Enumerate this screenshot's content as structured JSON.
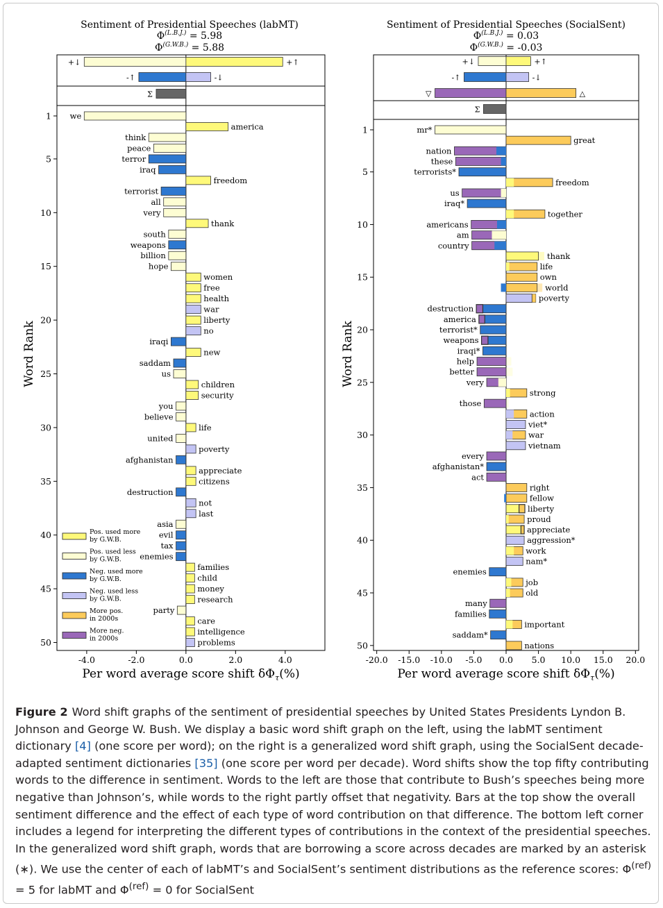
{
  "caption": {
    "label": "Figure 2",
    "part1": "Word shift graphs of the sentiment of presidential speeches by United States Presidents Lyndon B. Johnson and George W. Bush. We display a basic word shift graph on the left, using the labMT sentiment dictionary ",
    "ref1": "[4]",
    "part2": " (one score per word); on the right is a generalized word shift graph, using the SocialSent decade-adapted sentiment dictionaries ",
    "ref2": "[35]",
    "part3": " (one score per word per decade). Word shifts show the top fifty contributing words to the difference in sentiment. Words to the left are those that contribute to Bush’s speeches being more negative than Johnson’s, while words to the right partly offset that negativity. Bars at the top show the overall sentiment difference and the effect of each type of word contribution on that difference. The bottom left corner includes a legend for interpreting the different types of contributions in the context of the presidential speeches. In the generalized word shift graph, words that are borrowing a score across decades are marked by an asterisk (∗). We use the center of each of labMT’s and SocialSent’s sentiment distributions as the reference scores: Φ",
    "sup1": "(ref)",
    "part4": " = 5 for labMT and Φ",
    "sup2": "(ref)",
    "part5": " = 0 for SocialSent"
  },
  "colors": {
    "pos_more": "#fef97a",
    "pos_less": "#fdfdd3",
    "neg_more": "#2e78d0",
    "neg_less": "#c3c4f4",
    "more_pos_2000s": "#fccb5b",
    "more_neg_2000s": "#9a68b8",
    "total": "#666666",
    "edge": "#333333"
  },
  "chart_data": [
    {
      "type": "bar",
      "orientation": "horizontal",
      "title": "Sentiment of Presidential Speeches (labMT)",
      "phi_lbj_label": "Φ(L.B.J.) = 5.98",
      "phi_gwb_label": "Φ(G.W.B.) = 5.88",
      "xlabel": "Per word average score shift δΦτ(%)",
      "ylabel": "Word Rank",
      "xlim": [
        -5.2,
        5.6
      ],
      "xticks": [
        "-4.0",
        "-2.0",
        "0.0",
        "2.0",
        "4.0"
      ],
      "yticks": [
        "1",
        "5",
        "10",
        "15",
        "20",
        "25",
        "30",
        "35",
        "40",
        "45",
        "50"
      ],
      "summary_bars": [
        {
          "label": "+↓",
          "value": -4.1,
          "type": "pos_less"
        },
        {
          "label": "+↑",
          "value": 3.9,
          "type": "pos_more"
        },
        {
          "label": "-↑",
          "value": -1.9,
          "type": "neg_more"
        },
        {
          "label": "-↓",
          "value": 1.0,
          "type": "neg_less"
        },
        {
          "label": "Σ",
          "value": -1.2,
          "type": "total"
        }
      ],
      "words": [
        {
          "rank": 1,
          "word": "we",
          "value": -4.1,
          "type": "pos_less"
        },
        {
          "rank": 2,
          "word": "america",
          "value": 1.7,
          "type": "pos_more"
        },
        {
          "rank": 3,
          "word": "think",
          "value": -1.5,
          "type": "pos_less"
        },
        {
          "rank": 4,
          "word": "peace",
          "value": -1.3,
          "type": "pos_less"
        },
        {
          "rank": 5,
          "word": "terror",
          "value": -1.5,
          "type": "neg_more"
        },
        {
          "rank": 6,
          "word": "iraq",
          "value": -1.1,
          "type": "neg_more"
        },
        {
          "rank": 7,
          "word": "freedom",
          "value": 1.0,
          "type": "pos_more"
        },
        {
          "rank": 8,
          "word": "terrorist",
          "value": -1.0,
          "type": "neg_more"
        },
        {
          "rank": 9,
          "word": "all",
          "value": -0.9,
          "type": "pos_less"
        },
        {
          "rank": 10,
          "word": "very",
          "value": -0.9,
          "type": "pos_less"
        },
        {
          "rank": 11,
          "word": "thank",
          "value": 0.9,
          "type": "pos_more"
        },
        {
          "rank": 12,
          "word": "south",
          "value": -0.7,
          "type": "pos_less"
        },
        {
          "rank": 13,
          "word": "weapons",
          "value": -0.7,
          "type": "neg_more"
        },
        {
          "rank": 14,
          "word": "billion",
          "value": -0.7,
          "type": "pos_less"
        },
        {
          "rank": 15,
          "word": "hope",
          "value": -0.6,
          "type": "pos_less"
        },
        {
          "rank": 16,
          "word": "women",
          "value": 0.6,
          "type": "pos_more"
        },
        {
          "rank": 17,
          "word": "free",
          "value": 0.6,
          "type": "pos_more"
        },
        {
          "rank": 18,
          "word": "health",
          "value": 0.6,
          "type": "pos_more"
        },
        {
          "rank": 19,
          "word": "war",
          "value": 0.6,
          "type": "neg_less"
        },
        {
          "rank": 20,
          "word": "liberty",
          "value": 0.6,
          "type": "pos_more"
        },
        {
          "rank": 21,
          "word": "no",
          "value": 0.6,
          "type": "neg_less"
        },
        {
          "rank": 22,
          "word": "iraqi",
          "value": -0.6,
          "type": "neg_more"
        },
        {
          "rank": 23,
          "word": "new",
          "value": 0.6,
          "type": "pos_more"
        },
        {
          "rank": 24,
          "word": "saddam",
          "value": -0.5,
          "type": "neg_more"
        },
        {
          "rank": 25,
          "word": "us",
          "value": -0.5,
          "type": "pos_less"
        },
        {
          "rank": 26,
          "word": "children",
          "value": 0.5,
          "type": "pos_more"
        },
        {
          "rank": 27,
          "word": "security",
          "value": 0.5,
          "type": "pos_more"
        },
        {
          "rank": 28,
          "word": "you",
          "value": -0.4,
          "type": "pos_less"
        },
        {
          "rank": 29,
          "word": "believe",
          "value": -0.4,
          "type": "pos_less"
        },
        {
          "rank": 30,
          "word": "life",
          "value": 0.4,
          "type": "pos_more"
        },
        {
          "rank": 31,
          "word": "united",
          "value": -0.4,
          "type": "pos_less"
        },
        {
          "rank": 32,
          "word": "poverty",
          "value": 0.4,
          "type": "neg_less"
        },
        {
          "rank": 33,
          "word": "afghanistan",
          "value": -0.4,
          "type": "neg_more"
        },
        {
          "rank": 34,
          "word": "appreciate",
          "value": 0.4,
          "type": "pos_more"
        },
        {
          "rank": 35,
          "word": "citizens",
          "value": 0.4,
          "type": "pos_more"
        },
        {
          "rank": 36,
          "word": "destruction",
          "value": -0.4,
          "type": "neg_more"
        },
        {
          "rank": 37,
          "word": "not",
          "value": 0.4,
          "type": "neg_less"
        },
        {
          "rank": 38,
          "word": "last",
          "value": 0.4,
          "type": "neg_less"
        },
        {
          "rank": 39,
          "word": "asia",
          "value": -0.4,
          "type": "pos_less"
        },
        {
          "rank": 40,
          "word": "evil",
          "value": -0.4,
          "type": "neg_more"
        },
        {
          "rank": 41,
          "word": "tax",
          "value": -0.4,
          "type": "neg_more"
        },
        {
          "rank": 42,
          "word": "enemies",
          "value": -0.4,
          "type": "neg_more"
        },
        {
          "rank": 43,
          "word": "families",
          "value": 0.35,
          "type": "pos_more"
        },
        {
          "rank": 44,
          "word": "child",
          "value": 0.35,
          "type": "pos_more"
        },
        {
          "rank": 45,
          "word": "money",
          "value": 0.35,
          "type": "pos_more"
        },
        {
          "rank": 46,
          "word": "research",
          "value": 0.35,
          "type": "pos_more"
        },
        {
          "rank": 47,
          "word": "party",
          "value": -0.35,
          "type": "pos_less"
        },
        {
          "rank": 48,
          "word": "care",
          "value": 0.35,
          "type": "pos_more"
        },
        {
          "rank": 49,
          "word": "intelligence",
          "value": 0.35,
          "type": "pos_more"
        },
        {
          "rank": 50,
          "word": "problems",
          "value": 0.35,
          "type": "neg_less"
        }
      ],
      "legend": {
        "placement": "bottom-left",
        "entries": [
          {
            "type": "pos_more",
            "line1": "Pos. used more",
            "line2": "by G.W.B."
          },
          {
            "type": "pos_less",
            "line1": "Pos. used less",
            "line2": "by G.W.B."
          },
          {
            "type": "neg_more",
            "line1": "Neg. used more",
            "line2": "by G.W.B."
          },
          {
            "type": "neg_less",
            "line1": "Neg. used less",
            "line2": "by G.W.B."
          },
          {
            "type": "more_pos_2000s",
            "line1": "More pos.",
            "line2": "in 2000s"
          },
          {
            "type": "more_neg_2000s",
            "line1": "More neg.",
            "line2": "in 2000s"
          }
        ]
      }
    },
    {
      "type": "bar",
      "orientation": "horizontal",
      "title": "Sentiment of Presidential Speeches (SocialSent)",
      "phi_lbj_label": "Φ(L.B.J.) = 0.03",
      "phi_gwb_label": "Φ(G.W.B.) = -0.03",
      "xlabel": "Per word average score shift δΦτ(%)",
      "ylabel": "Word Rank",
      "xlim": [
        -20.5,
        20.5
      ],
      "xticks": [
        "-20.0",
        "-15.0",
        "-10.0",
        "-5.0",
        "0.0",
        "5.0",
        "10.0",
        "15.0",
        "20.0"
      ],
      "yticks": [
        "1",
        "5",
        "10",
        "15",
        "20",
        "25",
        "30",
        "35",
        "40",
        "45",
        "50"
      ],
      "summary_bars": [
        {
          "label": "+↓",
          "value": -4.3,
          "type": "pos_less"
        },
        {
          "label": "+↑",
          "value": 3.8,
          "type": "pos_more"
        },
        {
          "label": "-↑",
          "value": -6.5,
          "type": "neg_more"
        },
        {
          "label": "-↓",
          "value": 3.5,
          "type": "neg_less"
        },
        {
          "label": "▽",
          "value": -11.0,
          "type": "more_neg_2000s"
        },
        {
          "label": "△",
          "value": 10.8,
          "type": "more_pos_2000s"
        },
        {
          "label": "Σ",
          "value": -3.5,
          "type": "total"
        }
      ],
      "words": [
        {
          "rank": 1,
          "word": "mr*",
          "value": -11.0,
          "type": "pos_less"
        },
        {
          "rank": 2,
          "word": "great",
          "value": 10.0,
          "type": "more_pos_2000s"
        },
        {
          "rank": 3,
          "word": "nation",
          "value": -8.0,
          "type": "more_neg_2000s",
          "base": -1.5,
          "base_type": "neg_more"
        },
        {
          "rank": 4,
          "word": "these",
          "value": -7.8,
          "type": "more_neg_2000s",
          "base": -0.8,
          "base_type": "neg_more"
        },
        {
          "rank": 5,
          "word": "terrorists*",
          "value": -7.3,
          "type": "neg_more"
        },
        {
          "rank": 6,
          "word": "freedom",
          "value": 7.2,
          "type": "more_pos_2000s",
          "base": 1.2,
          "base_type": "pos_more"
        },
        {
          "rank": 7,
          "word": "us",
          "value": -6.8,
          "type": "more_neg_2000s",
          "base": -0.8,
          "base_type": "pos_less"
        },
        {
          "rank": 8,
          "word": "iraq*",
          "value": -6.0,
          "type": "neg_more"
        },
        {
          "rank": 9,
          "word": "together",
          "value": 6.0,
          "type": "more_pos_2000s",
          "base": 1.2,
          "base_type": "pos_more"
        },
        {
          "rank": 10,
          "word": "americans",
          "value": -5.4,
          "type": "more_neg_2000s",
          "base": -1.4,
          "base_type": "neg_more"
        },
        {
          "rank": 11,
          "word": "am",
          "value": -5.3,
          "type": "more_neg_2000s",
          "base": -2.2,
          "base_type": "pos_less"
        },
        {
          "rank": 12,
          "word": "country",
          "value": -5.3,
          "type": "more_neg_2000s",
          "base": -1.8,
          "base_type": "neg_more"
        },
        {
          "rank": 13,
          "word": "thank",
          "value": 5.0,
          "type": "pos_more",
          "faded": 5.9
        },
        {
          "rank": 14,
          "word": "life",
          "value": 4.8,
          "type": "more_pos_2000s",
          "base": 0.5,
          "base_type": "pos_more"
        },
        {
          "rank": 15,
          "word": "own",
          "value": 4.8,
          "type": "more_pos_2000s"
        },
        {
          "rank": 16,
          "word": "world",
          "value": 4.8,
          "type": "more_pos_2000s",
          "faded": 5.6,
          "base": -0.8,
          "base_type": "neg_more"
        },
        {
          "rank": 17,
          "word": "poverty",
          "value": 4.0,
          "type": "neg_less",
          "base2": 4.6,
          "base2_type": "more_pos_2000s"
        },
        {
          "rank": 18,
          "word": "destruction",
          "value": -4.6,
          "type": "neg_more",
          "inner": -3.6,
          "inner_type": "more_neg_2000s"
        },
        {
          "rank": 19,
          "word": "america",
          "value": -4.2,
          "type": "neg_more",
          "inner": -3.3,
          "inner_type": "more_neg_2000s"
        },
        {
          "rank": 20,
          "word": "terrorist*",
          "value": -4.0,
          "type": "neg_more"
        },
        {
          "rank": 21,
          "word": "weapons",
          "value": -3.8,
          "type": "neg_more",
          "inner": -2.8,
          "inner_type": "more_neg_2000s"
        },
        {
          "rank": 22,
          "word": "iraqi*",
          "value": -3.6,
          "type": "neg_more"
        },
        {
          "rank": 23,
          "word": "help",
          "value": -4.5,
          "type": "more_neg_2000s",
          "faded_pos": 0.8
        },
        {
          "rank": 24,
          "word": "better",
          "value": -4.5,
          "type": "more_neg_2000s",
          "faded_pos": 1.0
        },
        {
          "rank": 25,
          "word": "very",
          "value": -3.0,
          "type": "more_neg_2000s",
          "base": -1.2,
          "base_type": "pos_less"
        },
        {
          "rank": 26,
          "word": "strong",
          "value": 3.2,
          "type": "more_pos_2000s",
          "base": 0.6,
          "base_type": "pos_more"
        },
        {
          "rank": 27,
          "word": "those",
          "value": -3.4,
          "type": "more_neg_2000s",
          "faded_pos": 0.4
        },
        {
          "rank": 28,
          "word": "action",
          "value": 3.2,
          "type": "more_pos_2000s",
          "base": 1.2,
          "base_type": "neg_less"
        },
        {
          "rank": 29,
          "word": "viet*",
          "value": 3.0,
          "type": "neg_less"
        },
        {
          "rank": 30,
          "word": "war",
          "value": 3.0,
          "type": "more_pos_2000s",
          "base": 1.0,
          "base_type": "neg_less"
        },
        {
          "rank": 31,
          "word": "vietnam",
          "value": 3.0,
          "type": "neg_less"
        },
        {
          "rank": 32,
          "word": "every",
          "value": -3.0,
          "type": "more_neg_2000s"
        },
        {
          "rank": 33,
          "word": "afghanistan*",
          "value": -3.0,
          "type": "neg_more"
        },
        {
          "rank": 34,
          "word": "act",
          "value": -3.0,
          "type": "more_neg_2000s"
        },
        {
          "rank": 35,
          "word": "right",
          "value": 3.2,
          "type": "more_pos_2000s"
        },
        {
          "rank": 36,
          "word": "fellow",
          "value": 3.2,
          "type": "more_pos_2000s",
          "base": -0.3,
          "base_type": "neg_more"
        },
        {
          "rank": 37,
          "word": "liberty",
          "value": 2.9,
          "type": "pos_more",
          "inner": 2.0,
          "inner_type": "more_pos_2000s"
        },
        {
          "rank": 38,
          "word": "proud",
          "value": 2.8,
          "type": "more_pos_2000s",
          "base": 0.4,
          "base_type": "pos_more"
        },
        {
          "rank": 39,
          "word": "appreciate",
          "value": 2.8,
          "type": "pos_more",
          "inner": 2.3,
          "inner_type": "more_pos_2000s"
        },
        {
          "rank": 40,
          "word": "aggression*",
          "value": 2.8,
          "type": "neg_less"
        },
        {
          "rank": 41,
          "word": "work",
          "value": 2.6,
          "type": "more_pos_2000s",
          "base": 1.2,
          "base_type": "pos_more"
        },
        {
          "rank": 42,
          "word": "nam*",
          "value": 2.6,
          "type": "neg_less"
        },
        {
          "rank": 43,
          "word": "enemies",
          "value": -2.6,
          "type": "neg_more"
        },
        {
          "rank": 44,
          "word": "job",
          "value": 2.6,
          "type": "more_pos_2000s",
          "base": 0.8,
          "base_type": "pos_more"
        },
        {
          "rank": 45,
          "word": "old",
          "value": 2.6,
          "type": "more_pos_2000s",
          "base": 0.6,
          "base_type": "pos_more"
        },
        {
          "rank": 46,
          "word": "many",
          "value": -2.5,
          "type": "more_neg_2000s"
        },
        {
          "rank": 47,
          "word": "families",
          "value": -2.6,
          "type": "neg_more",
          "faded_pos": 0.3
        },
        {
          "rank": 48,
          "word": "important",
          "value": 2.4,
          "type": "more_pos_2000s",
          "base": 1.0,
          "base_type": "pos_more"
        },
        {
          "rank": 49,
          "word": "saddam*",
          "value": -2.4,
          "type": "neg_more"
        },
        {
          "rank": 50,
          "word": "nations",
          "value": 2.4,
          "type": "more_pos_2000s"
        }
      ]
    }
  ]
}
